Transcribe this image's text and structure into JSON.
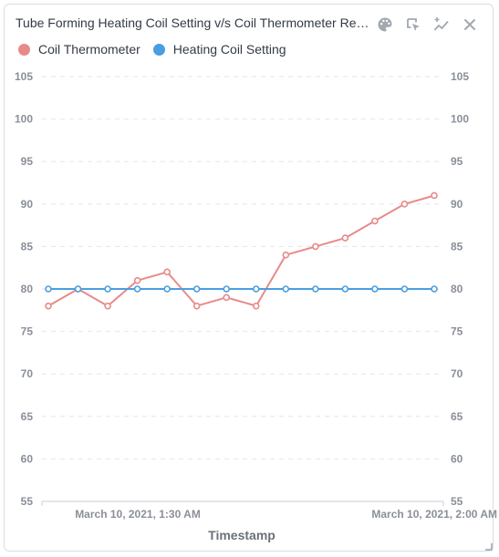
{
  "title": "Tube Forming Heating Coil Setting v/s Coil Thermometer Read...",
  "toolbar": [
    {
      "name": "palette-icon"
    },
    {
      "name": "select-cursor-icon"
    },
    {
      "name": "add-trendline-icon"
    },
    {
      "name": "close-icon"
    }
  ],
  "colors": {
    "coil_thermometer": "#e88a8a",
    "heating_coil_setting": "#4a9ee0",
    "grid": "#e3e6ea",
    "tick_text": "#8a8f98",
    "axis_title": "#6b7079"
  },
  "chart_data": {
    "type": "line",
    "xlabel": "Timestamp",
    "x_tick_labels": [
      "March 10, 2021, 1:30 AM",
      "March 10, 2021, 2:00 AM"
    ],
    "ylim": [
      55,
      105
    ],
    "yticks": [
      55,
      60,
      65,
      70,
      75,
      80,
      85,
      90,
      95,
      100,
      105
    ],
    "grid": true,
    "legend_position": "top-left",
    "series": [
      {
        "name": "Coil Thermometer",
        "values": [
          78,
          80,
          78,
          81,
          82,
          78,
          79,
          78,
          84,
          85,
          86,
          88,
          90,
          91
        ]
      },
      {
        "name": "Heating Coil Setting",
        "values": [
          80,
          80,
          80,
          80,
          80,
          80,
          80,
          80,
          80,
          80,
          80,
          80,
          80,
          80
        ]
      }
    ]
  }
}
